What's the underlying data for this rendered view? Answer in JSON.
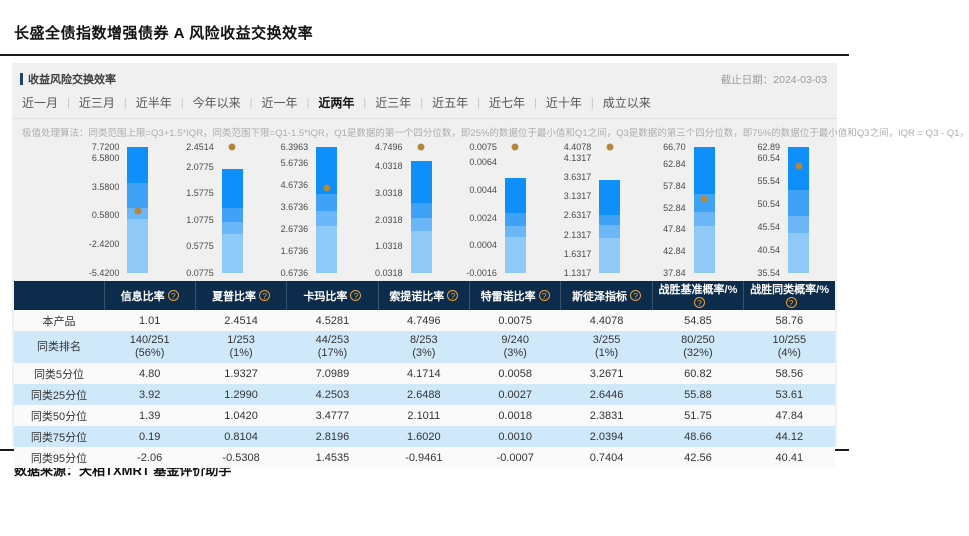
{
  "page": {
    "title": "长盛全债指数增强债券 A 风险收益交换效率",
    "footer": "数据来源：天相TXMRT 基金评价助手"
  },
  "panel": {
    "section_title": "收益风险交换效率",
    "as_of_label": "截止日期：2024-03-03",
    "tabs": [
      "近一月",
      "近三月",
      "近半年",
      "今年以来",
      "近一年",
      "近两年",
      "近三年",
      "近五年",
      "近七年",
      "近十年",
      "成立以来"
    ],
    "selected_tab": "近两年",
    "algorithm_note": "极值处理算法：同类范围上限=Q3+1.5*IQR，同类范围下限=Q1-1.5*IQR，Q1是数据的第一个四分位数，即25%的数据位于最小值和Q1之间，Q3是数据的第三个四分位数，即75%的数据位于最小值和Q3之间，IQR = Q3 - Q1，"
  },
  "colors": {
    "segment_top": "#0e8ff9",
    "segment_upper_mid": "#3fa2f6",
    "segment_lower_mid": "#6ab6f7",
    "segment_bottom": "#8fc9f8",
    "product_dot": "#b5873b",
    "header_bg": "#0d2b4b",
    "alt_row_bg": "#cfe9fb",
    "help_icon": "#e8a33c"
  },
  "chart_data": {
    "type": "boxplot-bars",
    "description": "Each bar spans peer lower bound to upper bound; shaded segments split at 25/50/75 percentiles; gold dot = this fund's value.",
    "charts": [
      {
        "name": "信息比率",
        "axis_max": 7.72,
        "axis_min": -5.42,
        "ticks": [
          "7.7200",
          "6.5800",
          "3.5800",
          "0.5800",
          "-2.4200",
          "-5.4200"
        ],
        "bar_top": 7.72,
        "q25": 3.92,
        "q50": 1.39,
        "q75": 0.19,
        "product": 1.01
      },
      {
        "name": "夏普比率",
        "axis_max": 2.4514,
        "axis_min": 0.0775,
        "ticks": [
          "2.4514",
          "2.0775",
          "1.5775",
          "1.0775",
          "0.5775",
          "0.0775"
        ],
        "bar_top": 2.0319,
        "q25": 1.299,
        "q50": 1.042,
        "q75": 0.8104,
        "product": 2.4514
      },
      {
        "name": "卡玛比率",
        "axis_max": 6.3963,
        "axis_min": 0.6736,
        "ticks": [
          "6.3963",
          "5.6736",
          "4.6736",
          "3.6736",
          "2.6736",
          "1.6736",
          "0.6736"
        ],
        "bar_top": 6.3963,
        "q25": 4.2503,
        "q50": 3.4777,
        "q75": 2.8196,
        "product": 4.5281
      },
      {
        "name": "索提诺比率",
        "axis_max": 4.7496,
        "axis_min": 0.0318,
        "ticks": [
          "4.7496",
          "4.0318",
          "3.0318",
          "2.0318",
          "1.0318",
          "0.0318"
        ],
        "bar_top": 4.219,
        "q25": 2.6488,
        "q50": 2.1011,
        "q75": 1.602,
        "product": 4.7496
      },
      {
        "name": "特雷诺比率",
        "axis_max": 0.0075,
        "axis_min": -0.0016,
        "ticks": [
          "0.0075",
          "0.0064",
          "0.0044",
          "0.0024",
          "0.0004",
          "-0.0016"
        ],
        "bar_top": 0.00525,
        "q25": 0.0027,
        "q50": 0.0018,
        "q75": 0.001,
        "product": 0.0075
      },
      {
        "name": "斯徒泽指标",
        "axis_max": 4.4078,
        "axis_min": 1.1317,
        "ticks": [
          "4.4078",
          "4.1317",
          "3.6317",
          "3.1317",
          "2.6317",
          "2.1317",
          "1.6317",
          "1.1317"
        ],
        "bar_top": 3.5524,
        "q25": 2.6446,
        "q50": 2.3831,
        "q75": 2.0394,
        "product": 4.4078
      },
      {
        "name": "战胜基准概率/%",
        "axis_max": 66.7,
        "axis_min": 37.84,
        "ticks": [
          "66.70",
          "62.84",
          "57.84",
          "52.84",
          "47.84",
          "42.84",
          "37.84"
        ],
        "bar_top": 66.7,
        "q25": 55.88,
        "q50": 51.75,
        "q75": 48.66,
        "product": 54.85
      },
      {
        "name": "战胜同类概率/%",
        "axis_max": 62.89,
        "axis_min": 35.54,
        "ticks": [
          "62.89",
          "60.54",
          "55.54",
          "50.54",
          "45.54",
          "40.54",
          "35.54"
        ],
        "bar_top": 62.89,
        "q25": 53.61,
        "q50": 47.84,
        "q75": 44.12,
        "product": 58.76
      }
    ]
  },
  "table": {
    "columns": [
      "信息比率",
      "夏普比率",
      "卡玛比率",
      "索提诺比率",
      "特雷诺比率",
      "斯徒泽指标",
      "战胜基准概率/%",
      "战胜同类概率/%"
    ],
    "help_glyph": "?",
    "rows": [
      {
        "label": "本产品",
        "cells": [
          "1.01",
          "2.4514",
          "4.5281",
          "4.7496",
          "0.0075",
          "4.4078",
          "54.85",
          "58.76"
        ]
      },
      {
        "label": "同类排名",
        "cells": [
          [
            "140/251",
            "(56%)"
          ],
          [
            "1/253",
            "(1%)"
          ],
          [
            "44/253",
            "(17%)"
          ],
          [
            "8/253",
            "(3%)"
          ],
          [
            "9/240",
            "(3%)"
          ],
          [
            "3/255",
            "(1%)"
          ],
          [
            "80/250",
            "(32%)"
          ],
          [
            "10/255",
            "(4%)"
          ]
        ]
      },
      {
        "label": "同类5分位",
        "cells": [
          "4.80",
          "1.9327",
          "7.0989",
          "4.1714",
          "0.0058",
          "3.2671",
          "60.82",
          "58.56"
        ]
      },
      {
        "label": "同类25分位",
        "cells": [
          "3.92",
          "1.2990",
          "4.2503",
          "2.6488",
          "0.0027",
          "2.6446",
          "55.88",
          "53.61"
        ]
      },
      {
        "label": "同类50分位",
        "cells": [
          "1.39",
          "1.0420",
          "3.4777",
          "2.1011",
          "0.0018",
          "2.3831",
          "51.75",
          "47.84"
        ]
      },
      {
        "label": "同类75分位",
        "cells": [
          "0.19",
          "0.8104",
          "2.8196",
          "1.6020",
          "0.0010",
          "2.0394",
          "48.66",
          "44.12"
        ]
      },
      {
        "label": "同类95分位",
        "cells": [
          "-2.06",
          "-0.5308",
          "1.4535",
          "-0.9461",
          "-0.0007",
          "0.7404",
          "42.56",
          "40.41"
        ]
      }
    ]
  }
}
